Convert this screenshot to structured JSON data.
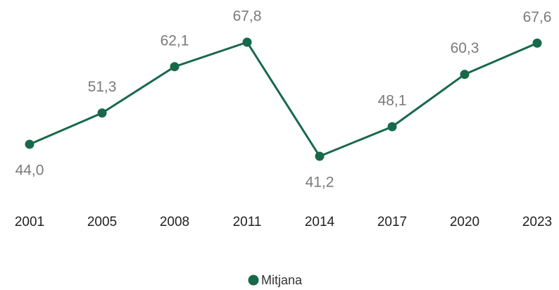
{
  "chart_data": {
    "type": "line",
    "categories": [
      "2001",
      "2005",
      "2008",
      "2011",
      "2014",
      "2017",
      "2020",
      "2023"
    ],
    "series": [
      {
        "name": "Mitjana",
        "color": "#17694a",
        "values": [
          44.0,
          51.3,
          62.1,
          67.8,
          41.2,
          48.1,
          60.3,
          67.6
        ],
        "value_labels": [
          "44,0",
          "51,3",
          "62,1",
          "67,8",
          "41,2",
          "48,1",
          "60,3",
          "67,6"
        ]
      }
    ]
  }
}
